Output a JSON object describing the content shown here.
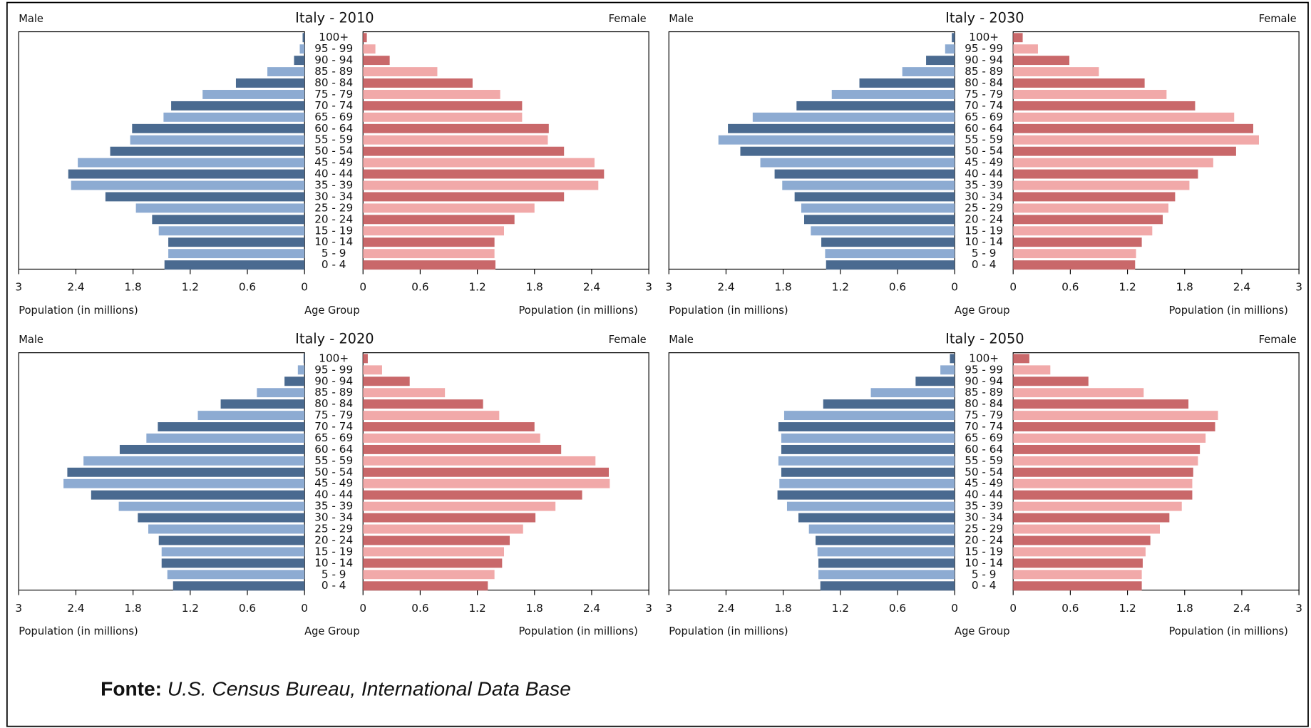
{
  "chart_data": [
    {
      "type": "pyramid",
      "title": "Italy - 2010",
      "xlabel": "Population (in millions)",
      "center_label": "Age Group",
      "categories": [
        "100+",
        "95 - 99",
        "90 - 94",
        "85 - 89",
        "80 - 84",
        "75 - 79",
        "70 - 74",
        "65 - 69",
        "60 - 64",
        "55 - 59",
        "50 - 54",
        "45 - 49",
        "40 - 44",
        "35 - 39",
        "30 - 34",
        "25 - 29",
        "20 - 24",
        "15 - 19",
        "10 - 14",
        "5 - 9",
        "0 - 4"
      ],
      "series": [
        {
          "name": "Male",
          "colors": [
            "#4a6a90",
            "#8dabd2"
          ],
          "values": [
            0.02,
            0.05,
            0.11,
            0.39,
            0.72,
            1.07,
            1.4,
            1.48,
            1.81,
            1.83,
            2.04,
            2.38,
            2.48,
            2.45,
            2.09,
            1.77,
            1.6,
            1.53,
            1.43,
            1.43,
            1.47
          ]
        },
        {
          "name": "Female",
          "colors": [
            "#c9686a",
            "#f1a9a9"
          ],
          "values": [
            0.04,
            0.13,
            0.28,
            0.78,
            1.15,
            1.44,
            1.67,
            1.67,
            1.95,
            1.94,
            2.11,
            2.43,
            2.53,
            2.47,
            2.11,
            1.8,
            1.59,
            1.48,
            1.38,
            1.38,
            1.39
          ]
        }
      ],
      "xlim": [
        0,
        3
      ],
      "xticks": [
        0,
        0.6,
        1.2,
        1.8,
        2.4,
        3
      ]
    },
    {
      "type": "pyramid",
      "title": "Italy - 2030",
      "xlabel": "Population (in millions)",
      "center_label": "Age Group",
      "categories": [
        "100+",
        "95 - 99",
        "90 - 94",
        "85 - 89",
        "80 - 84",
        "75 - 79",
        "70 - 74",
        "65 - 69",
        "60 - 64",
        "55 - 59",
        "50 - 54",
        "45 - 49",
        "40 - 44",
        "35 - 39",
        "30 - 34",
        "25 - 29",
        "20 - 24",
        "15 - 19",
        "10 - 14",
        "5 - 9",
        "0 - 4"
      ],
      "series": [
        {
          "name": "Male",
          "colors": [
            "#4a6a90",
            "#8dabd2"
          ],
          "values": [
            0.03,
            0.1,
            0.3,
            0.55,
            1.0,
            1.29,
            1.66,
            2.12,
            2.38,
            2.48,
            2.25,
            2.04,
            1.89,
            1.81,
            1.68,
            1.61,
            1.58,
            1.51,
            1.4,
            1.36,
            1.35
          ]
        },
        {
          "name": "Female",
          "colors": [
            "#c9686a",
            "#f1a9a9"
          ],
          "values": [
            0.1,
            0.26,
            0.59,
            0.9,
            1.38,
            1.61,
            1.91,
            2.32,
            2.52,
            2.58,
            2.34,
            2.1,
            1.94,
            1.85,
            1.7,
            1.63,
            1.57,
            1.46,
            1.35,
            1.29,
            1.28
          ]
        }
      ],
      "xlim": [
        0,
        3
      ],
      "xticks": [
        0,
        0.6,
        1.2,
        1.8,
        2.4,
        3
      ]
    },
    {
      "type": "pyramid",
      "title": "Italy - 2020",
      "xlabel": "Population (in millions)",
      "center_label": "Age Group",
      "categories": [
        "100+",
        "95 - 99",
        "90 - 94",
        "85 - 89",
        "80 - 84",
        "75 - 79",
        "70 - 74",
        "65 - 69",
        "60 - 64",
        "55 - 59",
        "50 - 54",
        "45 - 49",
        "40 - 44",
        "35 - 39",
        "30 - 34",
        "25 - 29",
        "20 - 24",
        "15 - 19",
        "10 - 14",
        "5 - 9",
        "0 - 4"
      ],
      "series": [
        {
          "name": "Male",
          "colors": [
            "#4a6a90",
            "#8dabd2"
          ],
          "values": [
            0.01,
            0.07,
            0.21,
            0.5,
            0.88,
            1.12,
            1.54,
            1.66,
            1.94,
            2.32,
            2.49,
            2.53,
            2.24,
            1.95,
            1.75,
            1.64,
            1.53,
            1.5,
            1.5,
            1.44,
            1.38
          ]
        },
        {
          "name": "Female",
          "colors": [
            "#c9686a",
            "#f1a9a9"
          ],
          "values": [
            0.05,
            0.2,
            0.49,
            0.86,
            1.26,
            1.43,
            1.8,
            1.86,
            2.08,
            2.44,
            2.58,
            2.59,
            2.3,
            2.02,
            1.81,
            1.68,
            1.54,
            1.48,
            1.46,
            1.38,
            1.31
          ]
        }
      ],
      "xlim": [
        0,
        3
      ],
      "xticks": [
        0,
        0.6,
        1.2,
        1.8,
        2.4,
        3
      ]
    },
    {
      "type": "pyramid",
      "title": "Italy - 2050",
      "xlabel": "Population (in millions)",
      "center_label": "Age Group",
      "categories": [
        "100+",
        "95 - 99",
        "90 - 94",
        "85 - 89",
        "80 - 84",
        "75 - 79",
        "70 - 74",
        "65 - 69",
        "60 - 64",
        "55 - 59",
        "50 - 54",
        "45 - 49",
        "40 - 44",
        "35 - 39",
        "30 - 34",
        "25 - 29",
        "20 - 24",
        "15 - 19",
        "10 - 14",
        "5 - 9",
        "0 - 4"
      ],
      "series": [
        {
          "name": "Male",
          "colors": [
            "#4a6a90",
            "#8dabd2"
          ],
          "values": [
            0.05,
            0.15,
            0.41,
            0.88,
            1.38,
            1.79,
            1.85,
            1.82,
            1.82,
            1.85,
            1.82,
            1.84,
            1.86,
            1.76,
            1.64,
            1.53,
            1.46,
            1.44,
            1.43,
            1.43,
            1.41
          ]
        },
        {
          "name": "Female",
          "colors": [
            "#c9686a",
            "#f1a9a9"
          ],
          "values": [
            0.17,
            0.39,
            0.79,
            1.37,
            1.84,
            2.15,
            2.12,
            2.02,
            1.96,
            1.94,
            1.89,
            1.88,
            1.88,
            1.77,
            1.64,
            1.54,
            1.44,
            1.39,
            1.36,
            1.35,
            1.35
          ]
        }
      ],
      "xlim": [
        0,
        3
      ],
      "xticks": [
        0,
        0.6,
        1.2,
        1.8,
        2.4,
        3
      ]
    }
  ],
  "source": {
    "label": "Fonte:",
    "text": "U.S. Census Bureau, International Data Base"
  }
}
